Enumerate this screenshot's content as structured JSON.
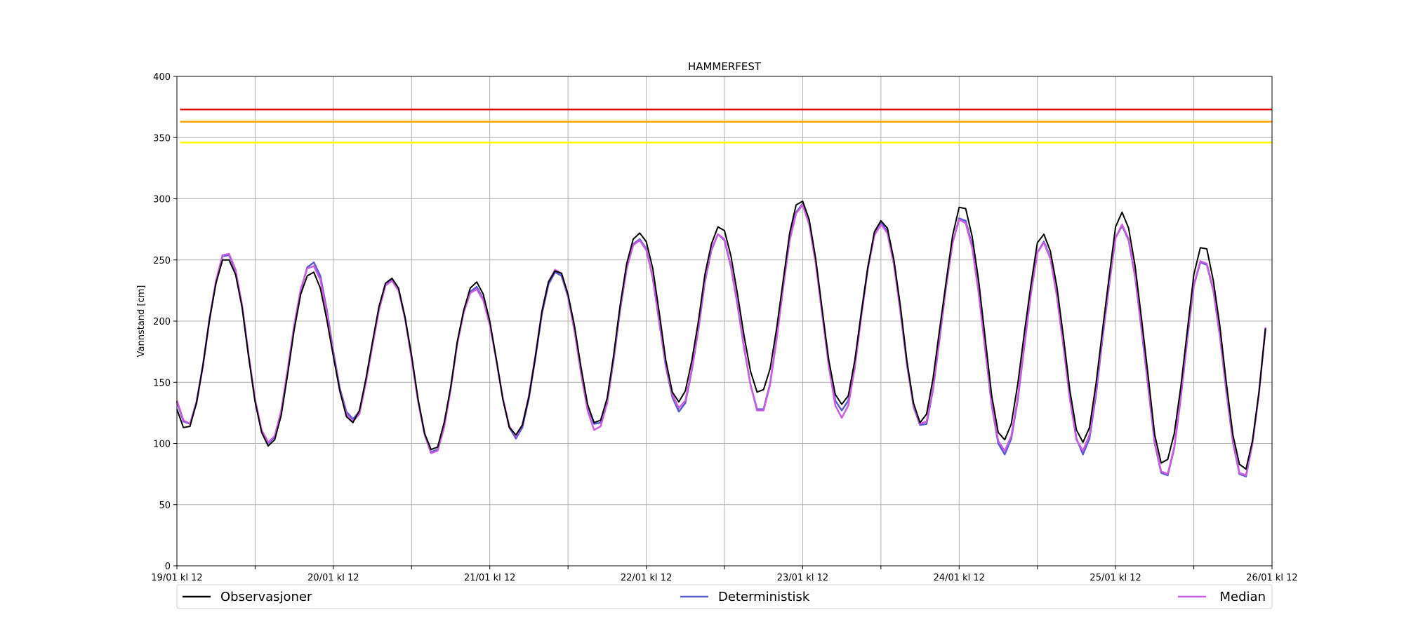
{
  "chart_data": {
    "type": "line",
    "title": "HAMMERFEST",
    "xlabel": "",
    "ylabel": "Vannstand [cm]",
    "ylim": [
      0,
      400
    ],
    "yticks": [
      0,
      50,
      100,
      150,
      200,
      250,
      300,
      350,
      400
    ],
    "xlim_hours": [
      0,
      168
    ],
    "x_step_hours": 1,
    "x_start": "19/01 kl 12",
    "xtick_labels": [
      "19/01 kl 12",
      "20/01 kl 12",
      "21/01 kl 12",
      "22/01 kl 12",
      "23/01 kl 12",
      "24/01 kl 12",
      "25/01 kl 12",
      "26/01 kl 12"
    ],
    "grid": true,
    "legend_position": "bottom",
    "thresholds": [
      {
        "value": 373,
        "color": "#e00000"
      },
      {
        "value": 363,
        "color": "#ffa500"
      },
      {
        "value": 346,
        "color": "#ffff00"
      }
    ],
    "series": [
      {
        "name": "Observasjoner",
        "color": "#000000",
        "values": [
          128,
          113,
          114,
          133,
          164,
          201,
          231,
          250,
          250,
          238,
          211,
          171,
          134,
          109,
          98,
          103,
          123,
          157,
          193,
          222,
          237,
          240,
          227,
          201,
          171,
          143,
          122,
          117,
          127,
          153,
          183,
          212,
          231,
          235,
          227,
          203,
          172,
          136,
          108,
          95,
          97,
          117,
          146,
          183,
          209,
          227,
          232,
          222,
          200,
          169,
          136,
          113,
          107,
          115,
          138,
          171,
          208,
          232,
          241,
          239,
          222,
          196,
          162,
          132,
          117,
          119,
          137,
          172,
          213,
          247,
          267,
          272,
          265,
          243,
          207,
          168,
          142,
          134,
          143,
          168,
          200,
          238,
          263,
          277,
          274,
          253,
          222,
          188,
          159,
          142,
          144,
          161,
          194,
          233,
          272,
          295,
          298,
          283,
          251,
          209,
          168,
          140,
          132,
          139,
          168,
          207,
          244,
          273,
          282,
          276,
          250,
          212,
          167,
          133,
          117,
          124,
          153,
          193,
          232,
          270,
          293,
          292,
          269,
          233,
          186,
          139,
          109,
          103,
          116,
          149,
          190,
          229,
          264,
          271,
          257,
          228,
          187,
          143,
          111,
          101,
          113,
          149,
          193,
          236,
          277,
          289,
          276,
          245,
          201,
          155,
          107,
          84,
          87,
          108,
          146,
          192,
          238,
          260,
          259,
          233,
          196,
          149,
          107,
          83,
          79,
          102,
          142,
          194
        ]
      },
      {
        "name": "Deterministisk",
        "color": "#5a5ad6",
        "values": [
          134,
          118,
          116,
          134,
          164,
          202,
          233,
          253,
          254,
          241,
          212,
          172,
          135,
          110,
          100,
          105,
          126,
          160,
          196,
          225,
          244,
          248,
          237,
          209,
          175,
          145,
          126,
          120,
          126,
          151,
          181,
          210,
          230,
          234,
          226,
          203,
          170,
          135,
          108,
          93,
          95,
          114,
          145,
          182,
          208,
          224,
          228,
          218,
          198,
          168,
          137,
          113,
          104,
          113,
          137,
          170,
          206,
          230,
          240,
          237,
          220,
          192,
          160,
          131,
          116,
          117,
          133,
          168,
          209,
          243,
          263,
          267,
          259,
          235,
          199,
          163,
          138,
          126,
          133,
          160,
          193,
          232,
          258,
          271,
          266,
          244,
          213,
          178,
          148,
          128,
          128,
          149,
          186,
          228,
          267,
          289,
          296,
          280,
          248,
          206,
          165,
          135,
          127,
          135,
          166,
          207,
          244,
          271,
          281,
          273,
          247,
          207,
          164,
          130,
          115,
          116,
          144,
          185,
          228,
          264,
          284,
          282,
          262,
          224,
          177,
          131,
          100,
          91,
          104,
          136,
          179,
          222,
          256,
          265,
          252,
          221,
          180,
          137,
          104,
          91,
          104,
          140,
          186,
          229,
          268,
          278,
          266,
          236,
          192,
          146,
          100,
          76,
          74,
          96,
          137,
          185,
          229,
          248,
          246,
          225,
          188,
          142,
          101,
          75,
          73,
          100,
          141,
          194
        ]
      },
      {
        "name": "Median",
        "color": "#cc5ce0",
        "values": [
          135,
          119,
          116,
          133,
          163,
          201,
          233,
          254,
          255,
          242,
          213,
          173,
          136,
          111,
          101,
          106,
          127,
          161,
          197,
          226,
          243,
          245,
          234,
          207,
          173,
          143,
          124,
          118,
          124,
          150,
          180,
          209,
          229,
          233,
          225,
          202,
          169,
          134,
          107,
          92,
          94,
          113,
          144,
          181,
          207,
          223,
          226,
          217,
          197,
          168,
          137,
          114,
          106,
          115,
          139,
          172,
          208,
          232,
          242,
          239,
          221,
          192,
          157,
          127,
          111,
          114,
          133,
          170,
          211,
          243,
          262,
          266,
          258,
          236,
          200,
          164,
          140,
          129,
          135,
          161,
          194,
          233,
          259,
          271,
          267,
          245,
          214,
          179,
          148,
          127,
          127,
          148,
          185,
          227,
          266,
          288,
          295,
          279,
          247,
          205,
          163,
          131,
          121,
          131,
          162,
          204,
          243,
          270,
          279,
          272,
          246,
          208,
          165,
          131,
          116,
          118,
          145,
          186,
          229,
          264,
          283,
          280,
          260,
          223,
          177,
          132,
          102,
          94,
          106,
          138,
          180,
          222,
          256,
          264,
          251,
          220,
          179,
          136,
          103,
          94,
          107,
          143,
          188,
          230,
          268,
          279,
          267,
          237,
          193,
          147,
          101,
          77,
          75,
          97,
          138,
          186,
          230,
          249,
          247,
          226,
          189,
          143,
          102,
          76,
          74,
          100,
          141,
          195
        ]
      }
    ]
  }
}
